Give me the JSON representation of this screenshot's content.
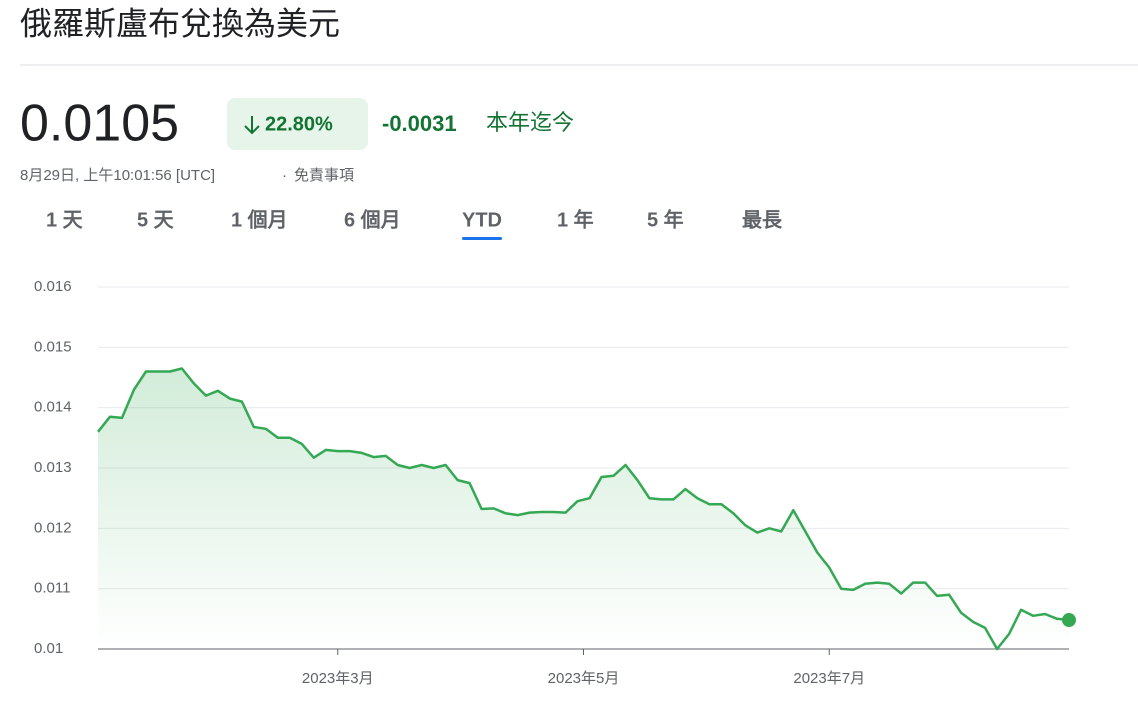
{
  "header": {
    "title": "俄羅斯盧布兌換為美元",
    "price": "0.0105",
    "change_percent": "22.80%",
    "change_value": "-0.0031",
    "period": "本年迄今",
    "timestamp": "8月29日, 上午10:01:56 [UTC]",
    "separator": "·",
    "disclaimer": "免責事項"
  },
  "tabs": [
    "1 天",
    "5 天",
    "1 個月",
    "6 個月",
    "YTD",
    "1 年",
    "5 年",
    "最長"
  ],
  "active_tab": "YTD",
  "chart_data": {
    "type": "line",
    "series": [
      {
        "color": "#34a853",
        "values": [
          0.0136,
          0.01385,
          0.01383,
          0.0143,
          0.0146,
          0.0146,
          0.0146,
          0.01465,
          0.0144,
          0.0142,
          0.01428,
          0.01415,
          0.0141,
          0.01368,
          0.01365,
          0.0135,
          0.0135,
          0.0134,
          0.01317,
          0.0133,
          0.01328,
          0.01328,
          0.01325,
          0.01318,
          0.0132,
          0.01305,
          0.013,
          0.01305,
          0.013,
          0.01305,
          0.0128,
          0.01275,
          0.01232,
          0.01233,
          0.01225,
          0.01222,
          0.01226,
          0.01227,
          0.01227,
          0.01226,
          0.01245,
          0.0125,
          0.01285,
          0.01287,
          0.01305,
          0.0128,
          0.0125,
          0.01248,
          0.01248,
          0.01265,
          0.0125,
          0.0124,
          0.0124,
          0.01225,
          0.01205,
          0.01193,
          0.012,
          0.01195,
          0.0123,
          0.01195,
          0.0116,
          0.01135,
          0.011,
          0.01098,
          0.01108,
          0.0111,
          0.01108,
          0.01092,
          0.0111,
          0.0111,
          0.01088,
          0.0109,
          0.0106,
          0.01045,
          0.01035,
          0.01,
          0.01025,
          0.01065,
          0.01055,
          0.01058,
          0.0105,
          0.01048
        ]
      }
    ],
    "xlim": [
      0,
      81
    ],
    "xticks": [
      {
        "value": 20,
        "label": "2023年3月"
      },
      {
        "value": 40.5,
        "label": "2023年5月"
      },
      {
        "value": 61,
        "label": "2023年7月"
      }
    ],
    "ylim": [
      0.01,
      0.016
    ],
    "yticks": [
      0.01,
      0.011,
      0.012,
      0.013,
      0.014,
      0.015,
      0.016
    ],
    "grid": true
  }
}
